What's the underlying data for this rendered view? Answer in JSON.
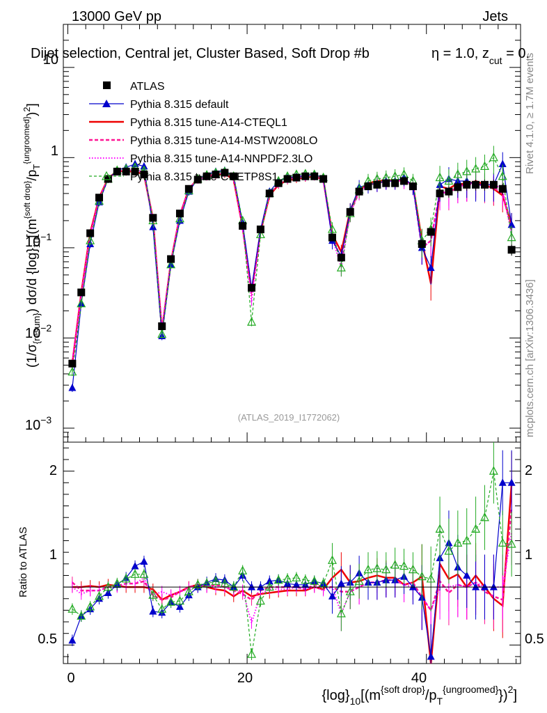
{
  "chart_data": {
    "type": "line",
    "top_left_label": "13000 GeV pp",
    "top_right_label": "Jets",
    "title": "Dijet selection, Central jet, Cluster Based, Soft Drop #beta = 1.0, z_cut = 0.",
    "title_parts": {
      "main": "Dijet selection, Central jet, Cluster Based, Soft Drop #b",
      "eta": "η = 1.0, z",
      "sub": "cut",
      "tail": " = 0."
    },
    "side_label_top": "Rivet 4.1.0, ≥ 1.7M events",
    "side_label_bottom": "mcplots.cern.ch [arXiv:1306.3436]",
    "watermark": "(ATLAS_2019_I1772062)",
    "ylabel_main": "(1/σ_{resum}) dσ/d {log}_10[(m^{soft drop}/p_T^{ungroomed})^2]",
    "ylabel_main_parts": {
      "p1": "(1/σ",
      "s1": "{resum}",
      "p2": ") dσ/d {log}",
      "s2": "10",
      "p3": "[(m",
      "s3": "{soft drop}",
      "p4": "/p",
      "s4": "T",
      "s5": "{ungroomed}",
      "p5": ")",
      "s6": "2",
      "p6": "]"
    },
    "ylabel_ratio": "Ratio to ATLAS",
    "xlabel": "{log}_10[(m^{soft drop}/p_T^{ungroomed})^2]",
    "xlabel_parts": {
      "p1": "{log}",
      "s1": "10",
      "p2": "[(m",
      "s2": "{soft drop}",
      "p3": "/p",
      "s3": "T",
      "s4": "{ungroomed}",
      "p4": "})",
      "s5": "2",
      "p5": "]"
    },
    "x_range": [
      -0.5,
      50.5
    ],
    "x_ticks": [
      0,
      20,
      40
    ],
    "x_tick_labels": [
      "0",
      "20",
      "40"
    ],
    "ylim_main": [
      0.0007,
      30
    ],
    "y_ticks_main": [
      0.001,
      0.01,
      0.1,
      1,
      10
    ],
    "y_tick_labels_main": {
      "e3": {
        "base": "10",
        "exp": "−3"
      },
      "e2": {
        "base": "10",
        "exp": "−2"
      },
      "e1": {
        "base": "10",
        "exp": "−1"
      },
      "one": "1",
      "ten": "10"
    },
    "ylim_ratio": [
      0.34,
      2.25
    ],
    "y_ticks_ratio": [
      0.5,
      1,
      2
    ],
    "y_tick_labels_ratio": [
      "0.5",
      "1",
      "2"
    ],
    "legend_position": "top-left",
    "x": [
      0.5,
      1.5,
      2.5,
      3.5,
      4.5,
      5.5,
      6.5,
      7.5,
      8.5,
      9.5,
      10.5,
      11.5,
      12.5,
      13.5,
      14.5,
      15.5,
      16.5,
      17.5,
      18.5,
      19.5,
      20.5,
      21.5,
      22.5,
      23.5,
      24.5,
      25.5,
      26.5,
      27.5,
      28.5,
      29.5,
      30.5,
      31.5,
      32.5,
      33.5,
      34.5,
      35.5,
      36.5,
      37.5,
      38.5,
      39.5,
      40.5,
      41.5,
      42.5,
      43.5,
      44.5,
      45.5,
      46.5,
      47.5,
      48.5,
      49.5
    ],
    "series": [
      {
        "name": "ATLAS",
        "color": "#000000",
        "marker": "square",
        "values": [
          0.0052,
          0.032,
          0.145,
          0.36,
          0.58,
          0.7,
          0.7,
          0.7,
          0.65,
          0.215,
          0.0135,
          0.075,
          0.24,
          0.45,
          0.57,
          0.62,
          0.65,
          0.68,
          0.62,
          0.175,
          0.036,
          0.16,
          0.4,
          0.52,
          0.58,
          0.6,
          0.62,
          0.62,
          0.58,
          0.13,
          0.078,
          0.25,
          0.42,
          0.48,
          0.5,
          0.52,
          0.52,
          0.55,
          0.48,
          0.11,
          0.15,
          0.4,
          0.42,
          0.47,
          0.5,
          0.5,
          0.5,
          0.5,
          0.45,
          0.095
        ]
      },
      {
        "name": "Pythia 8.315 default",
        "color": "#0000cc",
        "marker": "triangle",
        "values": [
          0.0028,
          0.024,
          0.11,
          0.32,
          0.58,
          0.72,
          0.78,
          0.85,
          0.8,
          0.17,
          0.0105,
          0.065,
          0.2,
          0.42,
          0.58,
          0.65,
          0.7,
          0.72,
          0.62,
          0.19,
          0.036,
          0.16,
          0.42,
          0.55,
          0.6,
          0.62,
          0.63,
          0.65,
          0.6,
          0.12,
          0.08,
          0.26,
          0.47,
          0.5,
          0.52,
          0.55,
          0.55,
          0.6,
          0.48,
          0.1,
          0.06,
          0.5,
          0.58,
          0.55,
          0.55,
          0.5,
          0.5,
          0.5,
          0.85,
          0.18
        ]
      },
      {
        "name": "Pythia 8.315 tune-A14-CTEQL1",
        "color": "#ee0000",
        "marker": "none",
        "values": [
          0.0052,
          0.032,
          0.147,
          0.36,
          0.59,
          0.71,
          0.7,
          0.7,
          0.65,
          0.21,
          0.012,
          0.07,
          0.23,
          0.45,
          0.58,
          0.62,
          0.64,
          0.66,
          0.57,
          0.17,
          0.033,
          0.15,
          0.38,
          0.5,
          0.56,
          0.58,
          0.6,
          0.62,
          0.57,
          0.14,
          0.09,
          0.26,
          0.44,
          0.52,
          0.55,
          0.56,
          0.56,
          0.56,
          0.5,
          0.12,
          0.04,
          0.48,
          0.45,
          0.52,
          0.5,
          0.55,
          0.5,
          0.45,
          0.38,
          0.18
        ]
      },
      {
        "name": "Pythia 8.315 tune-A14-MSTW2008LO",
        "color": "#ff1493",
        "marker": "none",
        "values": [
          0.0054,
          0.031,
          0.14,
          0.35,
          0.58,
          0.71,
          0.72,
          0.72,
          0.68,
          0.2,
          0.012,
          0.068,
          0.23,
          0.45,
          0.58,
          0.62,
          0.66,
          0.68,
          0.6,
          0.165,
          0.032,
          0.155,
          0.4,
          0.52,
          0.58,
          0.6,
          0.61,
          0.63,
          0.58,
          0.13,
          0.075,
          0.24,
          0.42,
          0.5,
          0.52,
          0.55,
          0.55,
          0.56,
          0.5,
          0.1,
          0.12,
          0.42,
          0.4,
          0.48,
          0.5,
          0.52,
          0.48,
          0.46,
          0.4,
          0.16
        ]
      },
      {
        "name": "Pythia 8.315 tune-A14-NNPDF2.3LO",
        "color": "#ff00ff",
        "marker": "none",
        "values": [
          0.0052,
          0.03,
          0.14,
          0.35,
          0.58,
          0.7,
          0.72,
          0.72,
          0.7,
          0.2,
          0.013,
          0.07,
          0.23,
          0.44,
          0.57,
          0.62,
          0.65,
          0.68,
          0.6,
          0.17,
          0.025,
          0.15,
          0.39,
          0.51,
          0.57,
          0.6,
          0.61,
          0.62,
          0.56,
          0.13,
          0.06,
          0.24,
          0.42,
          0.5,
          0.52,
          0.55,
          0.55,
          0.56,
          0.48,
          0.1,
          0.12,
          0.4,
          0.42,
          0.48,
          0.5,
          0.52,
          0.5,
          0.5,
          0.45,
          0.14
        ]
      },
      {
        "name": "Pythia 8.315 tune-CUETP8S1",
        "color": "#22aa22",
        "marker": "triangle-open",
        "values": [
          0.0042,
          0.024,
          0.12,
          0.33,
          0.58,
          0.72,
          0.75,
          0.78,
          0.72,
          0.2,
          0.011,
          0.065,
          0.21,
          0.43,
          0.58,
          0.64,
          0.68,
          0.7,
          0.62,
          0.2,
          0.015,
          0.14,
          0.4,
          0.55,
          0.62,
          0.65,
          0.66,
          0.65,
          0.6,
          0.16,
          0.06,
          0.24,
          0.44,
          0.55,
          0.58,
          0.6,
          0.62,
          0.65,
          0.55,
          0.12,
          0.16,
          0.6,
          0.55,
          0.65,
          0.7,
          0.75,
          0.8,
          1.0,
          0.62,
          0.13
        ]
      }
    ],
    "ratios": {
      "Pythia 8.315 default": [
        0.54,
        0.75,
        0.81,
        0.9,
        0.95,
        1.02,
        1.08,
        1.18,
        1.22,
        0.79,
        0.78,
        0.87,
        0.83,
        0.93,
        1.0,
        1.04,
        1.07,
        1.06,
        1.0,
        1.1,
        1.0,
        1.0,
        1.05,
        1.06,
        1.03,
        1.02,
        1.02,
        1.05,
        1.03,
        0.92,
        1.03,
        1.04,
        1.12,
        1.04,
        1.04,
        1.06,
        1.06,
        1.09,
        1.0,
        0.91,
        0.4,
        1.25,
        1.38,
        1.17,
        1.1,
        1.0,
        1.0,
        1.0,
        1.9,
        1.9
      ],
      "Pythia 8.315 tune-A14-CTEQL1": [
        1.0,
        1.0,
        1.01,
        1.0,
        1.02,
        1.01,
        1.0,
        1.0,
        1.0,
        0.98,
        0.89,
        0.93,
        0.96,
        1.0,
        1.02,
        1.0,
        0.98,
        0.97,
        0.92,
        0.97,
        0.92,
        0.94,
        0.95,
        0.96,
        0.97,
        0.97,
        0.97,
        1.0,
        0.98,
        1.08,
        1.15,
        1.04,
        1.05,
        1.08,
        1.1,
        1.08,
        1.08,
        1.02,
        1.04,
        1.09,
        0.27,
        1.2,
        1.07,
        1.11,
        1.0,
        1.1,
        1.0,
        0.9,
        0.84,
        1.89
      ],
      "Pythia 8.315 tune-A14-MSTW2008LO": [
        1.04,
        0.97,
        0.97,
        0.97,
        1.0,
        1.01,
        1.03,
        1.03,
        1.05,
        0.93,
        0.89,
        0.91,
        0.96,
        1.0,
        1.02,
        1.0,
        1.02,
        1.0,
        0.97,
        0.94,
        0.89,
        0.97,
        1.0,
        1.0,
        1.0,
        1.0,
        0.98,
        1.02,
        1.0,
        1.0,
        0.96,
        0.96,
        1.0,
        1.04,
        1.04,
        1.06,
        1.06,
        1.02,
        1.04,
        0.91,
        0.8,
        1.05,
        0.95,
        1.02,
        1.0,
        1.04,
        0.96,
        0.92,
        0.89,
        1.68
      ],
      "Pythia 8.315 tune-A14-NNPDF2.3LO": [
        1.0,
        0.94,
        0.97,
        0.97,
        1.0,
        1.0,
        1.03,
        1.03,
        1.08,
        0.93,
        0.96,
        0.93,
        0.96,
        0.98,
        1.0,
        1.0,
        1.0,
        1.0,
        0.97,
        0.97,
        0.69,
        0.94,
        0.98,
        0.98,
        0.98,
        1.0,
        0.98,
        1.0,
        0.97,
        1.0,
        0.77,
        0.96,
        1.0,
        1.04,
        1.04,
        1.06,
        1.06,
        1.02,
        1.0,
        0.91,
        0.8,
        1.0,
        1.0,
        1.02,
        1.0,
        1.04,
        1.0,
        1.0,
        1.0,
        1.47
      ],
      "Pythia 8.315 tune-CUETP8S1": [
        0.81,
        0.75,
        0.83,
        0.92,
        1.0,
        1.03,
        1.07,
        1.11,
        1.11,
        0.93,
        0.81,
        0.87,
        0.88,
        0.96,
        1.02,
        1.03,
        1.05,
        1.03,
        1.0,
        1.14,
        0.42,
        0.88,
        1.0,
        1.06,
        1.07,
        1.08,
        1.06,
        1.05,
        1.03,
        1.23,
        0.77,
        0.96,
        1.05,
        1.15,
        1.16,
        1.15,
        1.19,
        1.18,
        1.15,
        1.09,
        1.07,
        1.5,
        1.31,
        1.38,
        1.4,
        1.5,
        1.6,
        2.0,
        1.38,
        1.37
      ]
    }
  }
}
